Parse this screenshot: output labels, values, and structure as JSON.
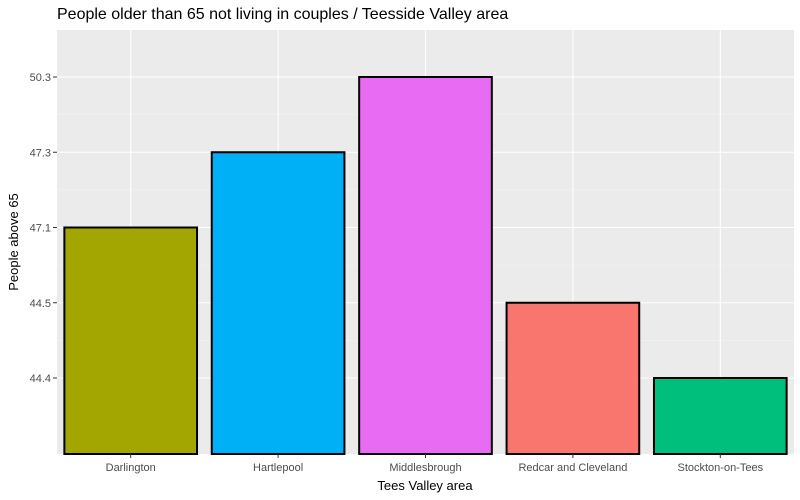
{
  "chart_data": {
    "type": "bar",
    "title": "People older than 65 not living in couples / Teesside Valley area",
    "xlabel": "Tees Valley area",
    "ylabel": "People above 65",
    "categories": [
      "Darlington",
      "Hartlepool",
      "Middlesbrough",
      "Redcar and Cleveland",
      "Stockton-on-Tees"
    ],
    "values": [
      "47.1",
      "47.3",
      "50.3",
      "44.5",
      "44.4"
    ],
    "y_ticks_top_to_bottom": [
      "50.3",
      "47.3",
      "47.1",
      "44.5",
      "44.4"
    ],
    "y_scale": "discrete",
    "colors": [
      "#A3A500",
      "#00B0F6",
      "#E76BF3",
      "#F8766D",
      "#00BF7D"
    ],
    "bar_outline": "#000000",
    "panel_background": "#EBEBEB",
    "grid": true,
    "legend": "none"
  }
}
